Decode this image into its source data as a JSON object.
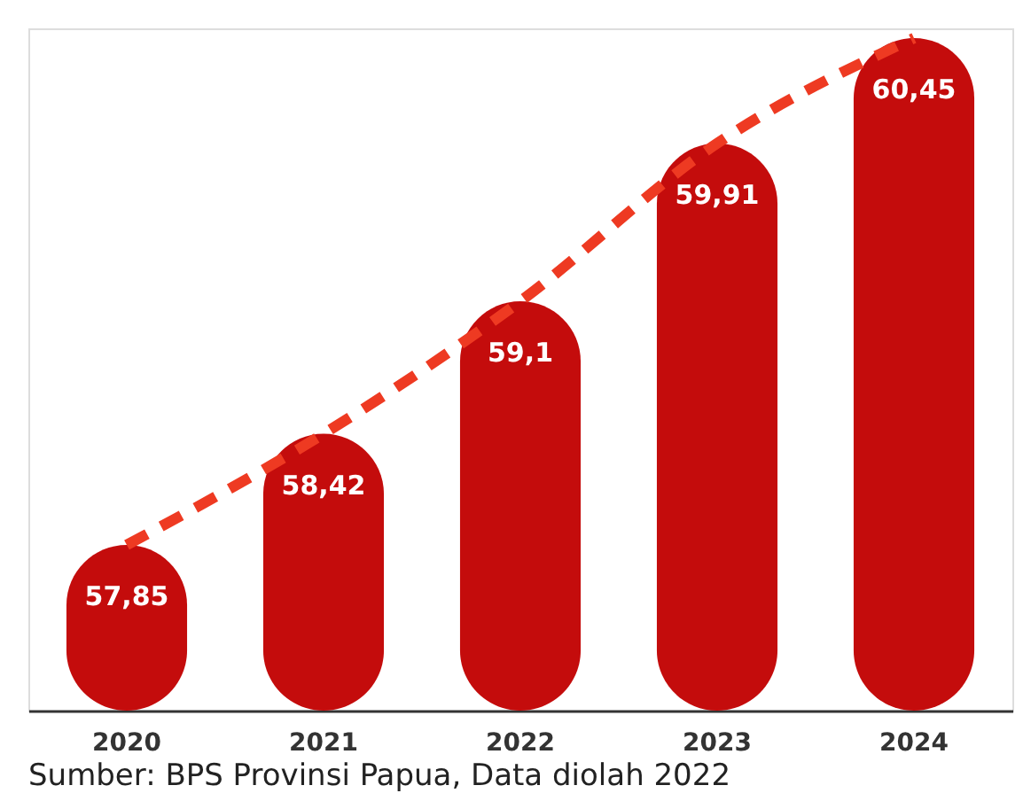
{
  "chart_data": {
    "type": "bar",
    "categories": [
      "2020",
      "2021",
      "2022",
      "2023",
      "2024"
    ],
    "series": [
      {
        "color": "#c40c0c",
        "values": [
          57.85,
          58.42,
          59.1,
          59.91,
          60.45
        ],
        "value_labels": [
          "57,85",
          "58,42",
          "59,1",
          "59,91",
          "60,45"
        ]
      },
      {
        "type": "line",
        "color": "#ee3a22",
        "line_style": "dashed",
        "values": [
          57.85,
          58.42,
          59.1,
          59.91,
          60.45
        ]
      }
    ],
    "ylim": [
      57,
      60.5
    ],
    "tick_labels": "x",
    "annotations": [
      "Sumber: BPS Provinsi Papua, Data diolah 2022"
    ]
  }
}
